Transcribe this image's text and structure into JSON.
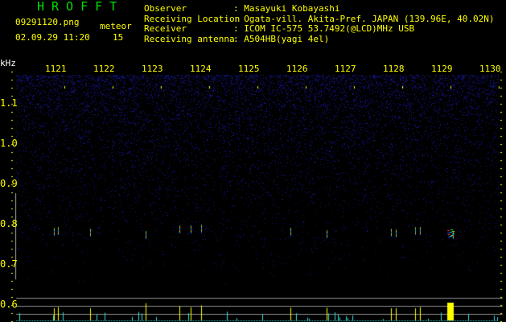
{
  "header": {
    "app_title": "HROFFT",
    "filename": "09291120.png",
    "datetime": "02.09.29 11:20",
    "meteor_label": "meteor",
    "meteor_count": "15",
    "info": [
      {
        "label": "Observer",
        "value": ": Masayuki Kobayashi"
      },
      {
        "label": "Receiving Location",
        "value": ": Ogata-vill. Akita-Pref. JAPAN (139.96E, 40.02N)"
      },
      {
        "label": "Receiver",
        "value": ": ICOM IC-575 53.7492(@LCD)MHz USB"
      },
      {
        "label": "Receiving antenna",
        "value": ": A504HB(yagi 4el)"
      }
    ]
  },
  "colors": {
    "text": "#ffff00",
    "title": "#00e000",
    "noise": "#1a1acc",
    "echo_bar": "#ffff00",
    "baseline_bar": "#33dddd",
    "grid": "#888888"
  },
  "chart_data": {
    "type": "heatmap",
    "ylabel": "kHz",
    "x_ticks": [
      "1121",
      "1122",
      "1123",
      "1124",
      "1125",
      "1126",
      "1127",
      "1128",
      "1129",
      "1130"
    ],
    "y_ticks": [
      "1.1",
      "1.0",
      "0.9",
      "0.8",
      "0.7",
      "0.6"
    ],
    "ylim": [
      0.56,
      1.2
    ],
    "xlim": [
      1120.2,
      1130.2
    ],
    "detections": [
      {
        "time": 1120.98,
        "freq_khz": 0.783,
        "strength": 0.5
      },
      {
        "time": 1121.07,
        "freq_khz": 0.785,
        "strength": 0.6
      },
      {
        "time": 1121.73,
        "freq_khz": 0.78,
        "strength": 0.5
      },
      {
        "time": 1122.88,
        "freq_khz": 0.775,
        "strength": 0.95
      },
      {
        "time": 1123.58,
        "freq_khz": 0.788,
        "strength": 0.7
      },
      {
        "time": 1123.82,
        "freq_khz": 0.788,
        "strength": 0.6
      },
      {
        "time": 1124.03,
        "freq_khz": 0.79,
        "strength": 0.75
      },
      {
        "time": 1125.88,
        "freq_khz": 0.783,
        "strength": 0.55
      },
      {
        "time": 1126.63,
        "freq_khz": 0.776,
        "strength": 0.55
      },
      {
        "time": 1127.97,
        "freq_khz": 0.78,
        "strength": 0.5
      },
      {
        "time": 1128.07,
        "freq_khz": 0.778,
        "strength": 0.5
      },
      {
        "time": 1128.47,
        "freq_khz": 0.785,
        "strength": 0.5
      },
      {
        "time": 1128.57,
        "freq_khz": 0.785,
        "strength": 0.6
      },
      {
        "time": 1129.13,
        "freq_khz": 0.778,
        "strength": 1.0
      },
      {
        "time": 1129.25,
        "freq_khz": 0.775,
        "strength": 0.4
      }
    ]
  }
}
